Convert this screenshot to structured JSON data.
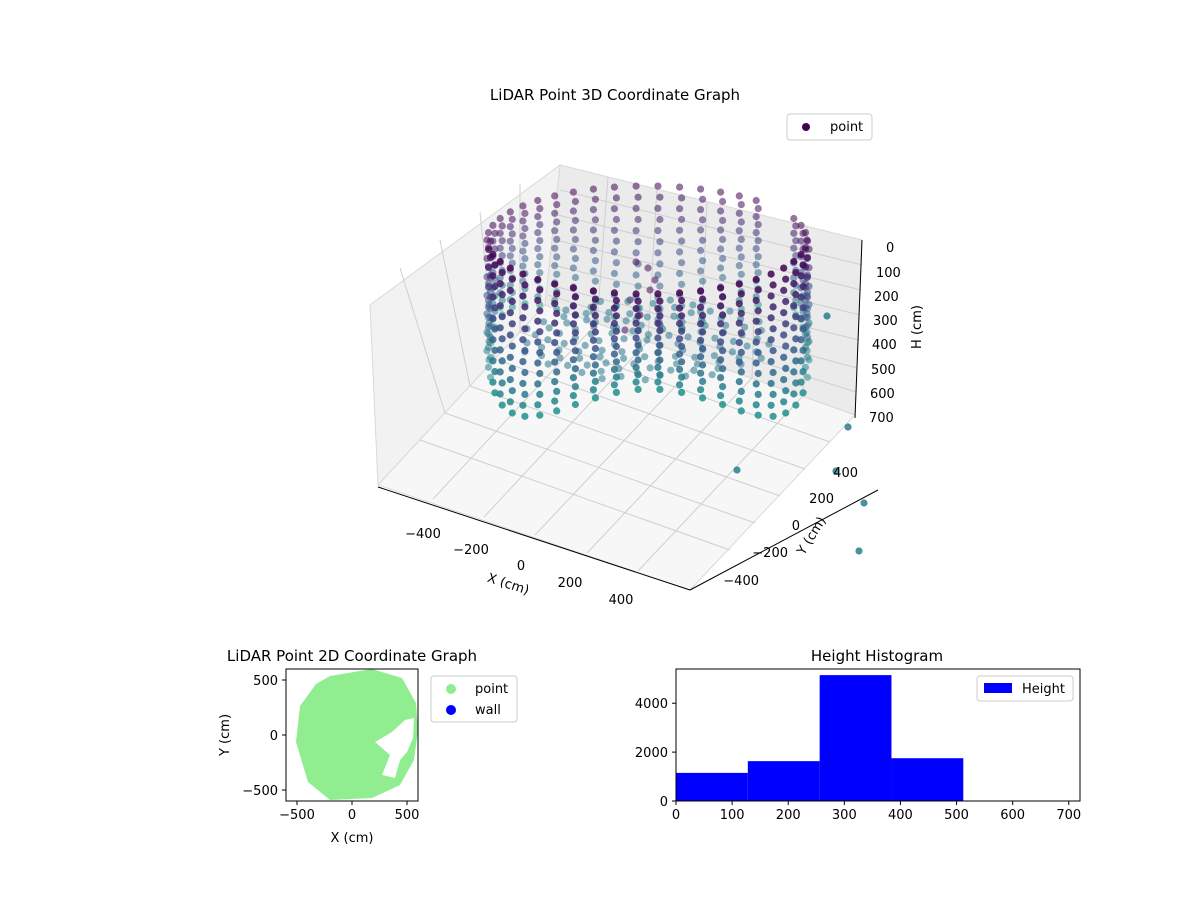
{
  "chart_data": [
    {
      "type": "scatter",
      "title": "LiDAR Point 3D Coordinate Graph",
      "xlabel": "X (cm)",
      "ylabel": "Y (cm)",
      "zlabel": "H (cm)",
      "xlim": [
        -550,
        550
      ],
      "ylim": [
        -550,
        550
      ],
      "zlim": [
        700,
        0
      ],
      "x_ticks": [
        "−400",
        "−200",
        "0",
        "200",
        "400"
      ],
      "y_ticks": [
        "−400",
        "−200",
        "0",
        "200",
        "400"
      ],
      "z_ticks": [
        "0",
        "100",
        "200",
        "300",
        "400",
        "500",
        "600",
        "700"
      ],
      "legend": {
        "entries": [
          "point"
        ],
        "placement": "top-right"
      },
      "colormap": [
        "#440154",
        "#3b528b",
        "#21918c"
      ],
      "description": "Points form a ring-shaped wall of radius about 450 cm spanning heights 0–700 cm, plus interior clutter and a few outliers."
    },
    {
      "type": "scatter",
      "title": "LiDAR Point 2D Coordinate Graph",
      "xlabel": "X (cm)",
      "ylabel": "Y (cm)",
      "xlim": [
        -600,
        600
      ],
      "ylim": [
        -600,
        600
      ],
      "x_ticks": [
        "−500",
        "0",
        "500"
      ],
      "y_ticks": [
        "−500",
        "0",
        "500"
      ],
      "series": [
        {
          "name": "point",
          "color": "#90ee90"
        },
        {
          "name": "wall",
          "color": "#0000ff"
        }
      ],
      "legend": {
        "placement": "outside-right"
      }
    },
    {
      "type": "bar",
      "title": "Height Histogram",
      "xlabel": "",
      "ylabel": "",
      "bins": [
        [
          0,
          128
        ],
        [
          128,
          256
        ],
        [
          256,
          384
        ],
        [
          384,
          512
        ],
        [
          512,
          640
        ],
        [
          640,
          720
        ]
      ],
      "values": [
        1150,
        1630,
        5150,
        1750,
        0,
        0
      ],
      "xlim": [
        0,
        720
      ],
      "ylim": [
        0,
        5400
      ],
      "x_ticks": [
        "0",
        "100",
        "200",
        "300",
        "400",
        "500",
        "600",
        "700"
      ],
      "y_ticks": [
        "0",
        "2000",
        "4000"
      ],
      "series": [
        {
          "name": "Height",
          "color": "#0000ff"
        }
      ],
      "legend": {
        "placement": "top-right"
      }
    }
  ]
}
